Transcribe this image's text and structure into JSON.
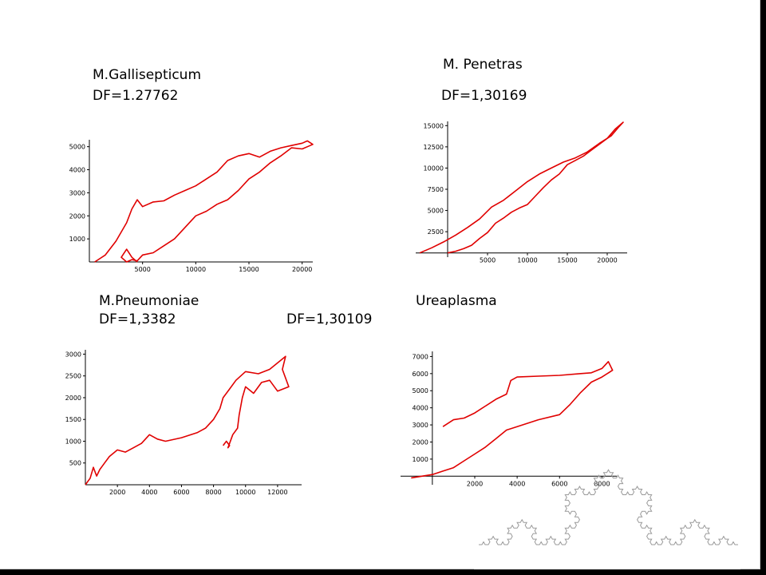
{
  "labels": {
    "galli_name": "M.Gallisepticum",
    "galli_df": "DF=1.27762",
    "pen_name": "M. Penetras",
    "pen_df": "DF=1,30169",
    "pneu_name": "M.Pneumoniae",
    "pneu_df": "DF=1,3382",
    "pneu_df2": "DF=1,30109",
    "urea_name": "Ureaplasma"
  },
  "colors": {
    "trace": "#e00000",
    "koch": "#9a9a9a",
    "background": "#000000",
    "slide": "#ffffff"
  },
  "decoration": "koch-snowflake-fractal",
  "chart_data": [
    {
      "type": "line",
      "title": "M.Gallisepticum",
      "xlim": [
        0,
        21000
      ],
      "ylim": [
        0,
        5300
      ],
      "xticks": [
        "5000",
        "10000",
        "15000",
        "20000"
      ],
      "yticks": [
        "1000",
        "2000",
        "3000",
        "4000",
        "5000"
      ],
      "series": [
        {
          "x": [
            500,
            1500,
            2500,
            3500,
            4000,
            4500,
            5000,
            6000,
            7000,
            8000,
            9000,
            10000,
            11000,
            12000,
            13000,
            14000,
            15000,
            16000,
            17000,
            18000,
            19000,
            20000,
            20500,
            21000,
            20500,
            20000,
            19000,
            18000,
            17000,
            16000,
            15000,
            14000,
            13000,
            12000,
            11000,
            10000,
            9000,
            8000,
            7000,
            6000,
            5000,
            4500,
            4000,
            3500,
            3000,
            3500,
            4000,
            4500
          ],
          "y": [
            0,
            300,
            900,
            1700,
            2300,
            2700,
            2400,
            2600,
            2650,
            2900,
            3100,
            3300,
            3600,
            3900,
            4400,
            4600,
            4700,
            4550,
            4800,
            4950,
            5050,
            5150,
            5250,
            5100,
            5000,
            4900,
            4950,
            4600,
            4300,
            3900,
            3600,
            3100,
            2700,
            2500,
            2200,
            2000,
            1500,
            1000,
            700,
            400,
            300,
            50,
            100,
            0,
            200,
            550,
            200,
            0
          ]
        }
      ]
    },
    {
      "type": "line",
      "title": "M. Penetras",
      "xlim": [
        -4000,
        22500
      ],
      "ylim": [
        -500,
        15500
      ],
      "xticks": [
        "5000",
        "10000",
        "15000",
        "20000"
      ],
      "yticks": [
        "2500",
        "5000",
        "7500",
        "10000",
        "12500",
        "15000"
      ],
      "series": [
        {
          "x": [
            -3500,
            -2000,
            -500,
            1000,
            2500,
            4000,
            5500,
            7000,
            8500,
            10000,
            11500,
            13000,
            14500,
            16000,
            17500,
            19000,
            20500,
            21500,
            22000,
            21000,
            20000,
            19000,
            18000,
            17000,
            16000,
            15000,
            14000,
            13000,
            12000,
            11000,
            10000,
            9000,
            8000,
            7000,
            6000,
            5000,
            4000,
            3000,
            2000,
            1000,
            0
          ],
          "y": [
            0,
            600,
            1300,
            2100,
            3000,
            4000,
            5400,
            6200,
            7300,
            8400,
            9300,
            10000,
            10700,
            11200,
            11900,
            12900,
            13800,
            14900,
            15400,
            14600,
            13500,
            12800,
            12100,
            11400,
            10900,
            10400,
            9300,
            8600,
            7700,
            6700,
            5700,
            5300,
            4800,
            4100,
            3500,
            2400,
            1700,
            900,
            500,
            200,
            0
          ]
        }
      ]
    },
    {
      "type": "line",
      "title": "M.Pneumoniae",
      "xlim": [
        0,
        13500
      ],
      "ylim": [
        0,
        3100
      ],
      "xticks": [
        "2000",
        "4000",
        "6000",
        "8000",
        "10000",
        "12000"
      ],
      "yticks": [
        "500",
        "1000",
        "1500",
        "2000",
        "2500",
        "3000"
      ],
      "series": [
        {
          "x": [
            0,
            300,
            500,
            700,
            900,
            1200,
            1500,
            2000,
            2500,
            3000,
            3500,
            4000,
            4500,
            5000,
            6000,
            7000,
            7500,
            8000,
            8400,
            8600,
            9000,
            9400,
            10000,
            10800,
            11500,
            12000,
            12500,
            12300,
            12700,
            12000,
            11500,
            11000,
            10500,
            10000,
            9800,
            9600,
            9500,
            9200,
            8900,
            9000,
            8800,
            8600
          ],
          "y": [
            0,
            150,
            400,
            200,
            350,
            500,
            650,
            800,
            750,
            850,
            950,
            1150,
            1050,
            1000,
            1080,
            1200,
            1300,
            1500,
            1750,
            2000,
            2200,
            2400,
            2600,
            2550,
            2650,
            2800,
            2950,
            2650,
            2250,
            2150,
            2400,
            2350,
            2100,
            2250,
            2000,
            1600,
            1300,
            1150,
            850,
            900,
            1000,
            900
          ]
        }
      ]
    },
    {
      "type": "line",
      "title": "Ureaplasma",
      "xlim": [
        -1500,
        8700
      ],
      "ylim": [
        -500,
        7300
      ],
      "xticks": [
        "2000",
        "4000",
        "6000",
        "8000"
      ],
      "yticks": [
        "1000",
        "2000",
        "3000",
        "4000",
        "5000",
        "6000",
        "7000"
      ],
      "series": [
        {
          "x": [
            -1000,
            0,
            500,
            1000,
            1500,
            2000,
            2500,
            3000,
            3500,
            4000,
            5000,
            6000,
            6500,
            7000,
            7500,
            8000,
            8500,
            8300,
            8000,
            7500,
            7000,
            6000,
            5000,
            4000,
            3700,
            3500,
            3000,
            2500,
            2000,
            1500,
            1000,
            500
          ],
          "y": [
            -100,
            100,
            300,
            500,
            900,
            1300,
            1700,
            2200,
            2700,
            2900,
            3300,
            3600,
            4200,
            4900,
            5500,
            5800,
            6200,
            6700,
            6300,
            6050,
            6000,
            5900,
            5850,
            5800,
            5600,
            4800,
            4500,
            4100,
            3700,
            3400,
            3300,
            2900
          ]
        }
      ]
    }
  ]
}
